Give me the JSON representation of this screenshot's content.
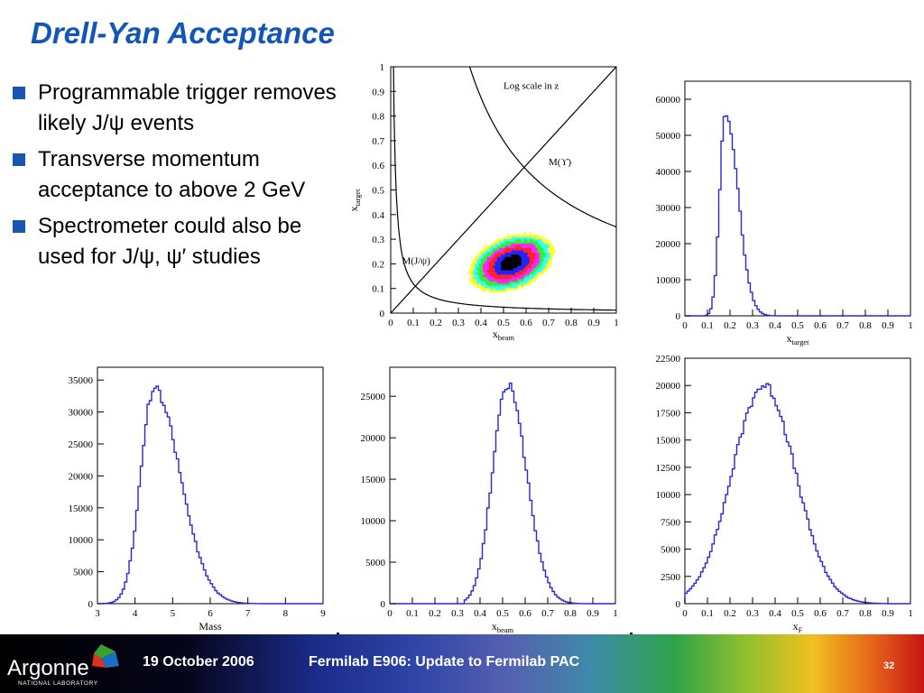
{
  "slide": {
    "title": "Drell-Yan Acceptance",
    "bullets": [
      "Programmable trigger removes likely J/ψ events",
      "Transverse momentum acceptance to above 2 GeV",
      "Spectrometer could also be used for J/ψ, ψ′ studies"
    ]
  },
  "footer": {
    "date": "19 October 2006",
    "title": "Fermilab E906:  Update to Fermilab PAC",
    "page": "32",
    "logo_text": "Argonne",
    "logo_subtext": "NATIONAL LABORATORY"
  },
  "colors": {
    "title": "#1257b8",
    "bullet": "#1a56b0",
    "hist_line": "#2828d8"
  },
  "chart_data": [
    {
      "id": "scatter",
      "type": "heatmap",
      "xlabel": "x",
      "xlabel_sub": "beam",
      "ylabel": "x",
      "ylabel_sub": "target",
      "xlim": [
        0,
        1
      ],
      "ylim": [
        0,
        1
      ],
      "xticks": [
        "0",
        "0.1",
        "0.2",
        "0.3",
        "0.4",
        "0.5",
        "0.6",
        "0.7",
        "0.8",
        "0.9",
        "1"
      ],
      "yticks": [
        "0",
        "0.1",
        "0.2",
        "0.3",
        "0.4",
        "0.5",
        "0.6",
        "0.7",
        "0.8",
        "0.9",
        "1"
      ],
      "annotations": [
        "Log scale in z",
        "M(ϒ)",
        "M(J/ψ)"
      ],
      "curves": {
        "jpsi_kt": 0.012,
        "upsilon_kt": 0.35,
        "diagonal": [
          [
            0,
            0
          ],
          [
            1,
            1
          ]
        ]
      },
      "bands": [
        {
          "color": "#ffff22",
          "rx": 0.195,
          "ry": 0.108
        },
        {
          "color": "#33ffff",
          "rx": 0.175,
          "ry": 0.097
        },
        {
          "color": "#33ee33",
          "rx": 0.155,
          "ry": 0.085
        },
        {
          "color": "#ff22ff",
          "rx": 0.133,
          "ry": 0.073
        },
        {
          "color": "#ff2222",
          "rx": 0.108,
          "ry": 0.06
        },
        {
          "color": "#2222ff",
          "rx": 0.082,
          "ry": 0.046
        },
        {
          "color": "#000000",
          "rx": 0.05,
          "ry": 0.028
        }
      ],
      "band_center": [
        0.53,
        0.2
      ]
    },
    {
      "id": "hist-xtarget",
      "type": "area",
      "xlabel": "x",
      "xlabel_sub": "target",
      "xlim": [
        0,
        1
      ],
      "ylim": [
        0,
        65000
      ],
      "xticks": [
        "0",
        "0.1",
        "0.2",
        "0.3",
        "0.4",
        "0.5",
        "0.6",
        "0.7",
        "0.8",
        "0.9",
        "1"
      ],
      "yticks": [
        "0",
        "10000",
        "20000",
        "30000",
        "40000",
        "50000",
        "60000"
      ],
      "ytick_values": [
        0,
        10000,
        20000,
        30000,
        40000,
        50000,
        60000
      ],
      "peak": 0.18,
      "sigma_left": 0.025,
      "sigma_right": 0.055,
      "amplitude": 57000,
      "xstart": 0.09,
      "xend": 0.65
    },
    {
      "id": "hist-mass",
      "type": "area",
      "xlabel": "Mass",
      "xlabel_sub": "",
      "xlim": [
        3,
        9
      ],
      "ylim": [
        0,
        37000
      ],
      "xticks": [
        "3",
        "4",
        "5",
        "6",
        "7",
        "8",
        "9"
      ],
      "yticks": [
        "0",
        "5000",
        "10000",
        "15000",
        "20000",
        "25000",
        "30000",
        "35000"
      ],
      "ytick_values": [
        0,
        5000,
        10000,
        15000,
        20000,
        25000,
        30000,
        35000
      ],
      "peak": 4.5,
      "sigma_left": 0.35,
      "sigma_right": 0.7,
      "amplitude": 33500,
      "xstart": 3.0,
      "xend": 8.5
    },
    {
      "id": "hist-xbeam",
      "type": "area",
      "xlabel": "x",
      "xlabel_sub": "beam",
      "xlim": [
        0,
        1
      ],
      "ylim": [
        0,
        28500
      ],
      "xticks": [
        "0",
        "0.1",
        "0.2",
        "0.3",
        "0.4",
        "0.5",
        "0.6",
        "0.7",
        "0.8",
        "0.9",
        "1"
      ],
      "yticks": [
        "0",
        "5000",
        "10000",
        "15000",
        "20000",
        "25000"
      ],
      "ytick_values": [
        0,
        5000,
        10000,
        15000,
        20000,
        25000
      ],
      "peak": 0.52,
      "sigma_left": 0.065,
      "sigma_right": 0.085,
      "amplitude": 26500,
      "xstart": 0.33,
      "xend": 0.92
    },
    {
      "id": "hist-xf",
      "type": "area",
      "xlabel": "x",
      "xlabel_sub": "F",
      "xlim": [
        0,
        1
      ],
      "ylim": [
        0,
        22500
      ],
      "xticks": [
        "0",
        "0.1",
        "0.2",
        "0.3",
        "0.4",
        "0.5",
        "0.6",
        "0.7",
        "0.8",
        "0.9",
        "1"
      ],
      "yticks": [
        "0",
        "2500",
        "5000",
        "7500",
        "10000",
        "12500",
        "15000",
        "17500",
        "20000",
        "22500"
      ],
      "ytick_values": [
        0,
        2500,
        5000,
        7500,
        10000,
        12500,
        15000,
        17500,
        20000,
        22500
      ],
      "peak": 0.35,
      "sigma_left": 0.14,
      "sigma_right": 0.14,
      "amplitude": 20000,
      "xstart": 0.0,
      "xend": 0.85
    }
  ]
}
